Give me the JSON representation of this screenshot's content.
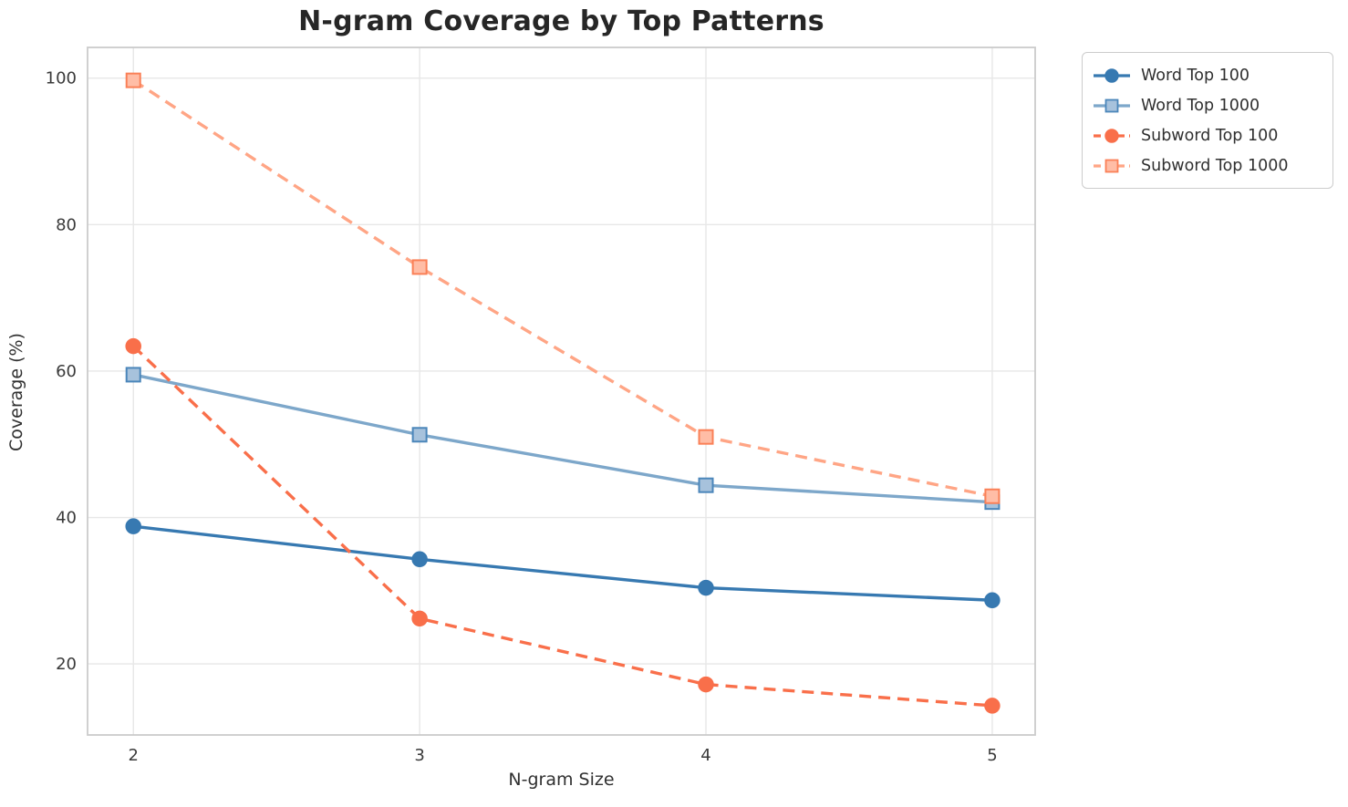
{
  "title": "N-gram Coverage by Top Patterns",
  "chart_data": {
    "type": "line",
    "title": "N-gram Coverage by Top Patterns",
    "xlabel": "N-gram Size",
    "ylabel": "Coverage (%)",
    "x": [
      2,
      3,
      4,
      5
    ],
    "xticks": [
      2,
      3,
      4,
      5
    ],
    "yticks": [
      20,
      40,
      60,
      80,
      100
    ],
    "xlim": [
      1.84,
      5.15
    ],
    "ylim": [
      10.3,
      104.2
    ],
    "grid": true,
    "legend_position": "outside-top-right",
    "series": [
      {
        "name": "Word Top 100",
        "values": [
          38.8,
          34.3,
          30.4,
          28.7
        ],
        "color": "#3779b1",
        "marker": "circle",
        "line_style": "solid",
        "marker_fill": "#3779b1",
        "marker_edge": "#3779b1"
      },
      {
        "name": "Word Top 1000",
        "values": [
          59.5,
          51.3,
          44.4,
          42.1
        ],
        "color": "#7da7ca",
        "marker": "square",
        "line_style": "solid",
        "marker_fill": "#a7c2dc",
        "marker_edge": "#4b86ba"
      },
      {
        "name": "Subword Top 100",
        "values": [
          63.4,
          26.2,
          17.2,
          14.3
        ],
        "color": "#f96f4a",
        "marker": "circle",
        "line_style": "dashed",
        "marker_fill": "#f96f4a",
        "marker_edge": "#f96f4a"
      },
      {
        "name": "Subword Top 1000",
        "values": [
          99.7,
          74.2,
          51.0,
          42.9
        ],
        "color": "#ffa585",
        "marker": "square",
        "line_style": "dashed",
        "marker_fill": "#ffbda6",
        "marker_edge": "#fa8057"
      }
    ],
    "colors": {
      "grid": "#e7e7e7",
      "spine": "#cbcbcb",
      "tick_text": "#3a3a3a",
      "title_text": "#262626"
    }
  }
}
